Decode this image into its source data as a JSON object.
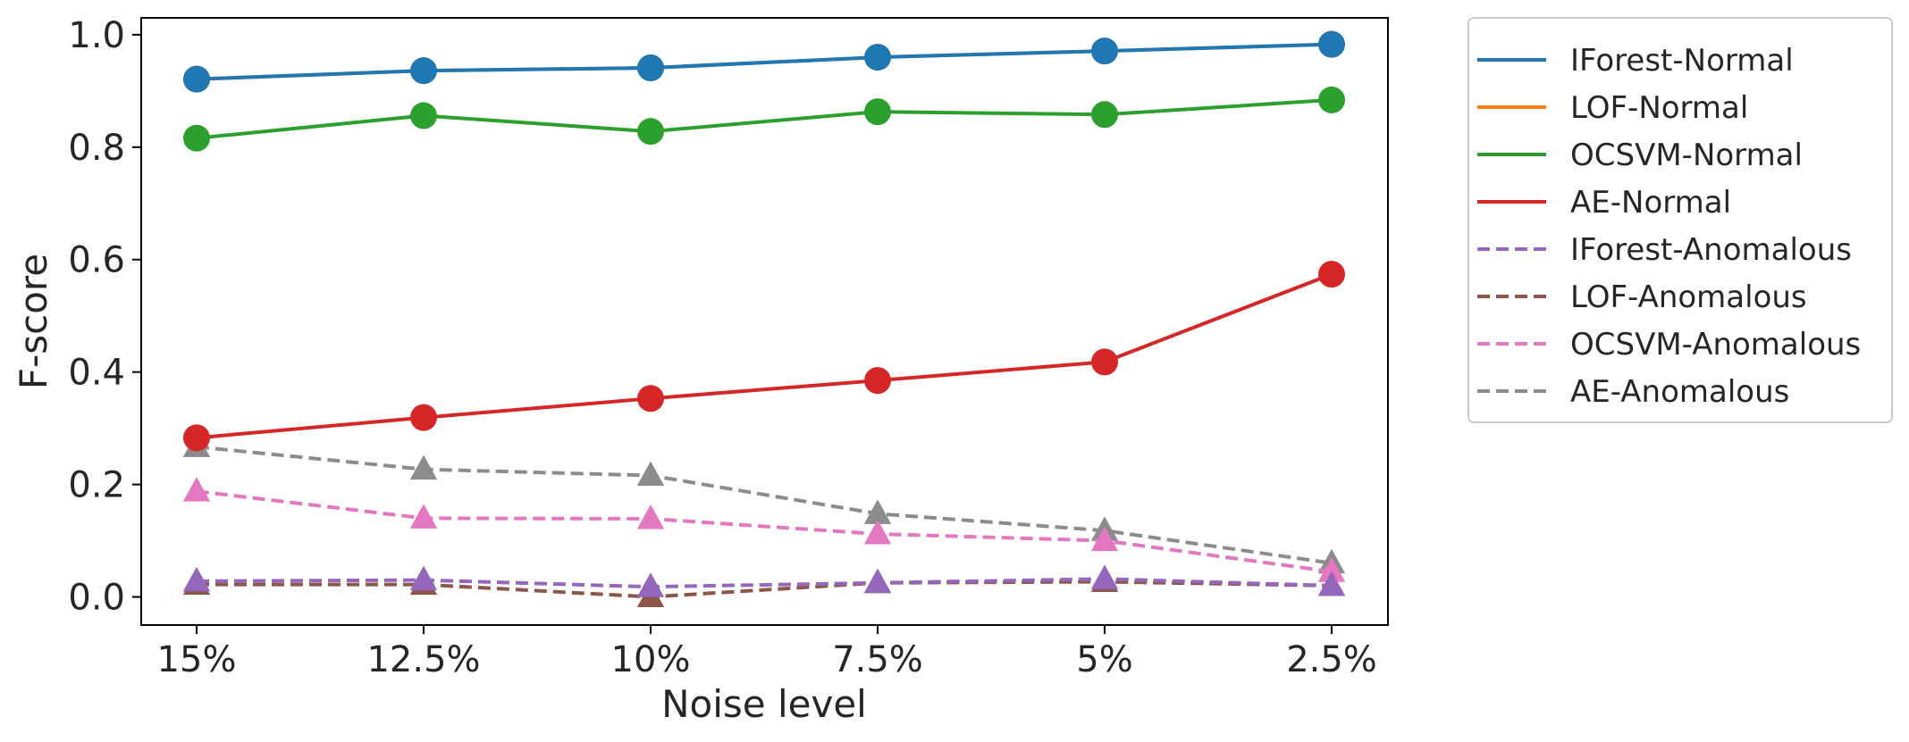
{
  "chart_data": {
    "type": "line",
    "title": "",
    "xlabel": "Noise level",
    "ylabel": "F-score",
    "categories": [
      "15%",
      "12.5%",
      "10%",
      "7.5%",
      "5%",
      "2.5%"
    ],
    "ylim": [
      -0.05,
      1.03
    ],
    "yticks": [
      "0.0",
      "0.2",
      "0.4",
      "0.6",
      "0.8",
      "1.0"
    ],
    "ytick_values": [
      0.0,
      0.2,
      0.4,
      0.6,
      0.8,
      1.0
    ],
    "grid": false,
    "legend_position": "outside-right",
    "series": [
      {
        "name": "IForest-Normal",
        "color": "#1f77b4",
        "dash": false,
        "marker": "circle",
        "values": [
          0.921,
          0.936,
          0.941,
          0.96,
          0.971,
          0.983
        ]
      },
      {
        "name": "LOF-Normal",
        "color": "#ff7f0e",
        "dash": false,
        "marker": "circle",
        "values": [
          0.921,
          0.936,
          0.941,
          0.96,
          0.971,
          0.983
        ]
      },
      {
        "name": "OCSVM-Normal",
        "color": "#2ca02c",
        "dash": false,
        "marker": "circle",
        "values": [
          0.816,
          0.856,
          0.828,
          0.863,
          0.858,
          0.884
        ]
      },
      {
        "name": "AE-Normal",
        "color": "#d62728",
        "dash": false,
        "marker": "circle",
        "values": [
          0.283,
          0.319,
          0.353,
          0.385,
          0.418,
          0.574
        ]
      },
      {
        "name": "IForest-Anomalous",
        "color": "#9467bd",
        "dash": true,
        "marker": "triangle",
        "values": [
          0.028,
          0.03,
          0.018,
          0.025,
          0.032,
          0.02
        ]
      },
      {
        "name": "LOF-Anomalous",
        "color": "#8c564b",
        "dash": true,
        "marker": "triangle",
        "values": [
          0.022,
          0.022,
          0.0,
          0.025,
          0.027,
          0.02
        ]
      },
      {
        "name": "OCSVM-Anomalous",
        "color": "#e377c2",
        "dash": true,
        "marker": "triangle",
        "values": [
          0.188,
          0.14,
          0.139,
          0.112,
          0.1,
          0.045
        ]
      },
      {
        "name": "AE-Anomalous",
        "color": "#8c8c8c",
        "dash": true,
        "marker": "triangle",
        "values": [
          0.267,
          0.227,
          0.216,
          0.148,
          0.118,
          0.06
        ]
      }
    ]
  }
}
